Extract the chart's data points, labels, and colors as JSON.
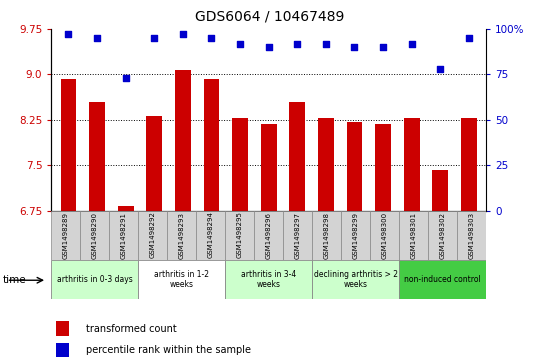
{
  "title": "GDS6064 / 10467489",
  "samples": [
    "GSM1498289",
    "GSM1498290",
    "GSM1498291",
    "GSM1498292",
    "GSM1498293",
    "GSM1498294",
    "GSM1498295",
    "GSM1498296",
    "GSM1498297",
    "GSM1498298",
    "GSM1498299",
    "GSM1498300",
    "GSM1498301",
    "GSM1498302",
    "GSM1498303"
  ],
  "bar_values": [
    8.93,
    8.55,
    6.82,
    8.32,
    9.08,
    8.92,
    8.28,
    8.18,
    8.55,
    8.28,
    8.22,
    8.18,
    8.28,
    7.42,
    8.28
  ],
  "dot_values": [
    97,
    95,
    73,
    95,
    97,
    95,
    92,
    90,
    92,
    92,
    90,
    90,
    92,
    78,
    95
  ],
  "bar_color": "#cc0000",
  "dot_color": "#0000cc",
  "ylim_left": [
    6.75,
    9.75
  ],
  "ylim_right": [
    0,
    100
  ],
  "yticks_left": [
    6.75,
    7.5,
    8.25,
    9.0,
    9.75
  ],
  "yticks_right": [
    0,
    25,
    50,
    75,
    100
  ],
  "groups": [
    {
      "label": "arthritis in 0-3 days",
      "start": 0,
      "end": 3,
      "color": "#ccffcc"
    },
    {
      "label": "arthritis in 1-2\nweeks",
      "start": 3,
      "end": 6,
      "color": "#ffffff"
    },
    {
      "label": "arthritis in 3-4\nweeks",
      "start": 6,
      "end": 9,
      "color": "#ccffcc"
    },
    {
      "label": "declining arthritis > 2\nweeks",
      "start": 9,
      "end": 12,
      "color": "#ccffcc"
    },
    {
      "label": "non-induced control",
      "start": 12,
      "end": 15,
      "color": "#44cc44"
    }
  ],
  "bar_color_legend": "#cc0000",
  "dot_color_legend": "#0000cc",
  "tick_label_color_left": "#cc0000",
  "tick_label_color_right": "#0000cc",
  "bar_width": 0.55,
  "sample_bg_color": "#d3d3d3",
  "group_border_color": "#888888",
  "background_color": "#ffffff"
}
